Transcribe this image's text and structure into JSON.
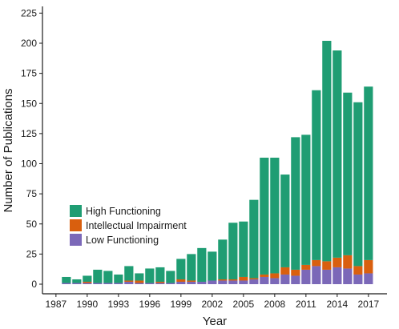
{
  "chart_data": {
    "type": "bar",
    "stacked": true,
    "xlabel": "Year",
    "ylabel": "Number of Publications",
    "ylim": [
      0,
      235
    ],
    "yticks": [
      0,
      25,
      50,
      75,
      100,
      125,
      150,
      175,
      200,
      225
    ],
    "xticks": [
      1987,
      1990,
      1993,
      1996,
      1999,
      2002,
      2005,
      2008,
      2011,
      2014,
      2017
    ],
    "x": [
      1988,
      1989,
      1990,
      1991,
      1992,
      1993,
      1994,
      1995,
      1996,
      1997,
      1998,
      1999,
      2000,
      2001,
      2002,
      2003,
      2004,
      2005,
      2006,
      2007,
      2008,
      2009,
      2010,
      2011,
      2012,
      2013,
      2014,
      2015,
      2016,
      2017
    ],
    "series": [
      {
        "name": "Low Functioning",
        "color": "#7b68b8",
        "values": [
          1,
          1,
          1,
          1,
          1,
          1,
          2,
          1,
          1,
          1,
          1,
          2,
          2,
          2,
          3,
          3,
          3,
          3,
          4,
          6,
          5,
          8,
          7,
          12,
          15,
          12,
          14,
          13,
          8,
          9
        ]
      },
      {
        "name": "Intellectual Impairment",
        "color": "#d95f0e",
        "values": [
          0,
          0,
          1,
          0,
          0,
          0,
          1,
          2,
          0,
          1,
          0,
          2,
          1,
          0,
          0,
          1,
          1,
          3,
          1,
          2,
          4,
          6,
          5,
          4,
          5,
          7,
          8,
          11,
          7,
          11
        ]
      },
      {
        "name": "High Functioning",
        "color": "#1f9d73",
        "values": [
          5,
          3,
          5,
          11,
          10,
          7,
          12,
          6,
          12,
          12,
          10,
          17,
          22,
          28,
          24,
          33,
          47,
          46,
          65,
          97,
          96,
          77,
          110,
          108,
          141,
          183,
          172,
          135,
          136,
          144
        ]
      }
    ],
    "legend": "left-bottom inside plot",
    "grid": false
  }
}
